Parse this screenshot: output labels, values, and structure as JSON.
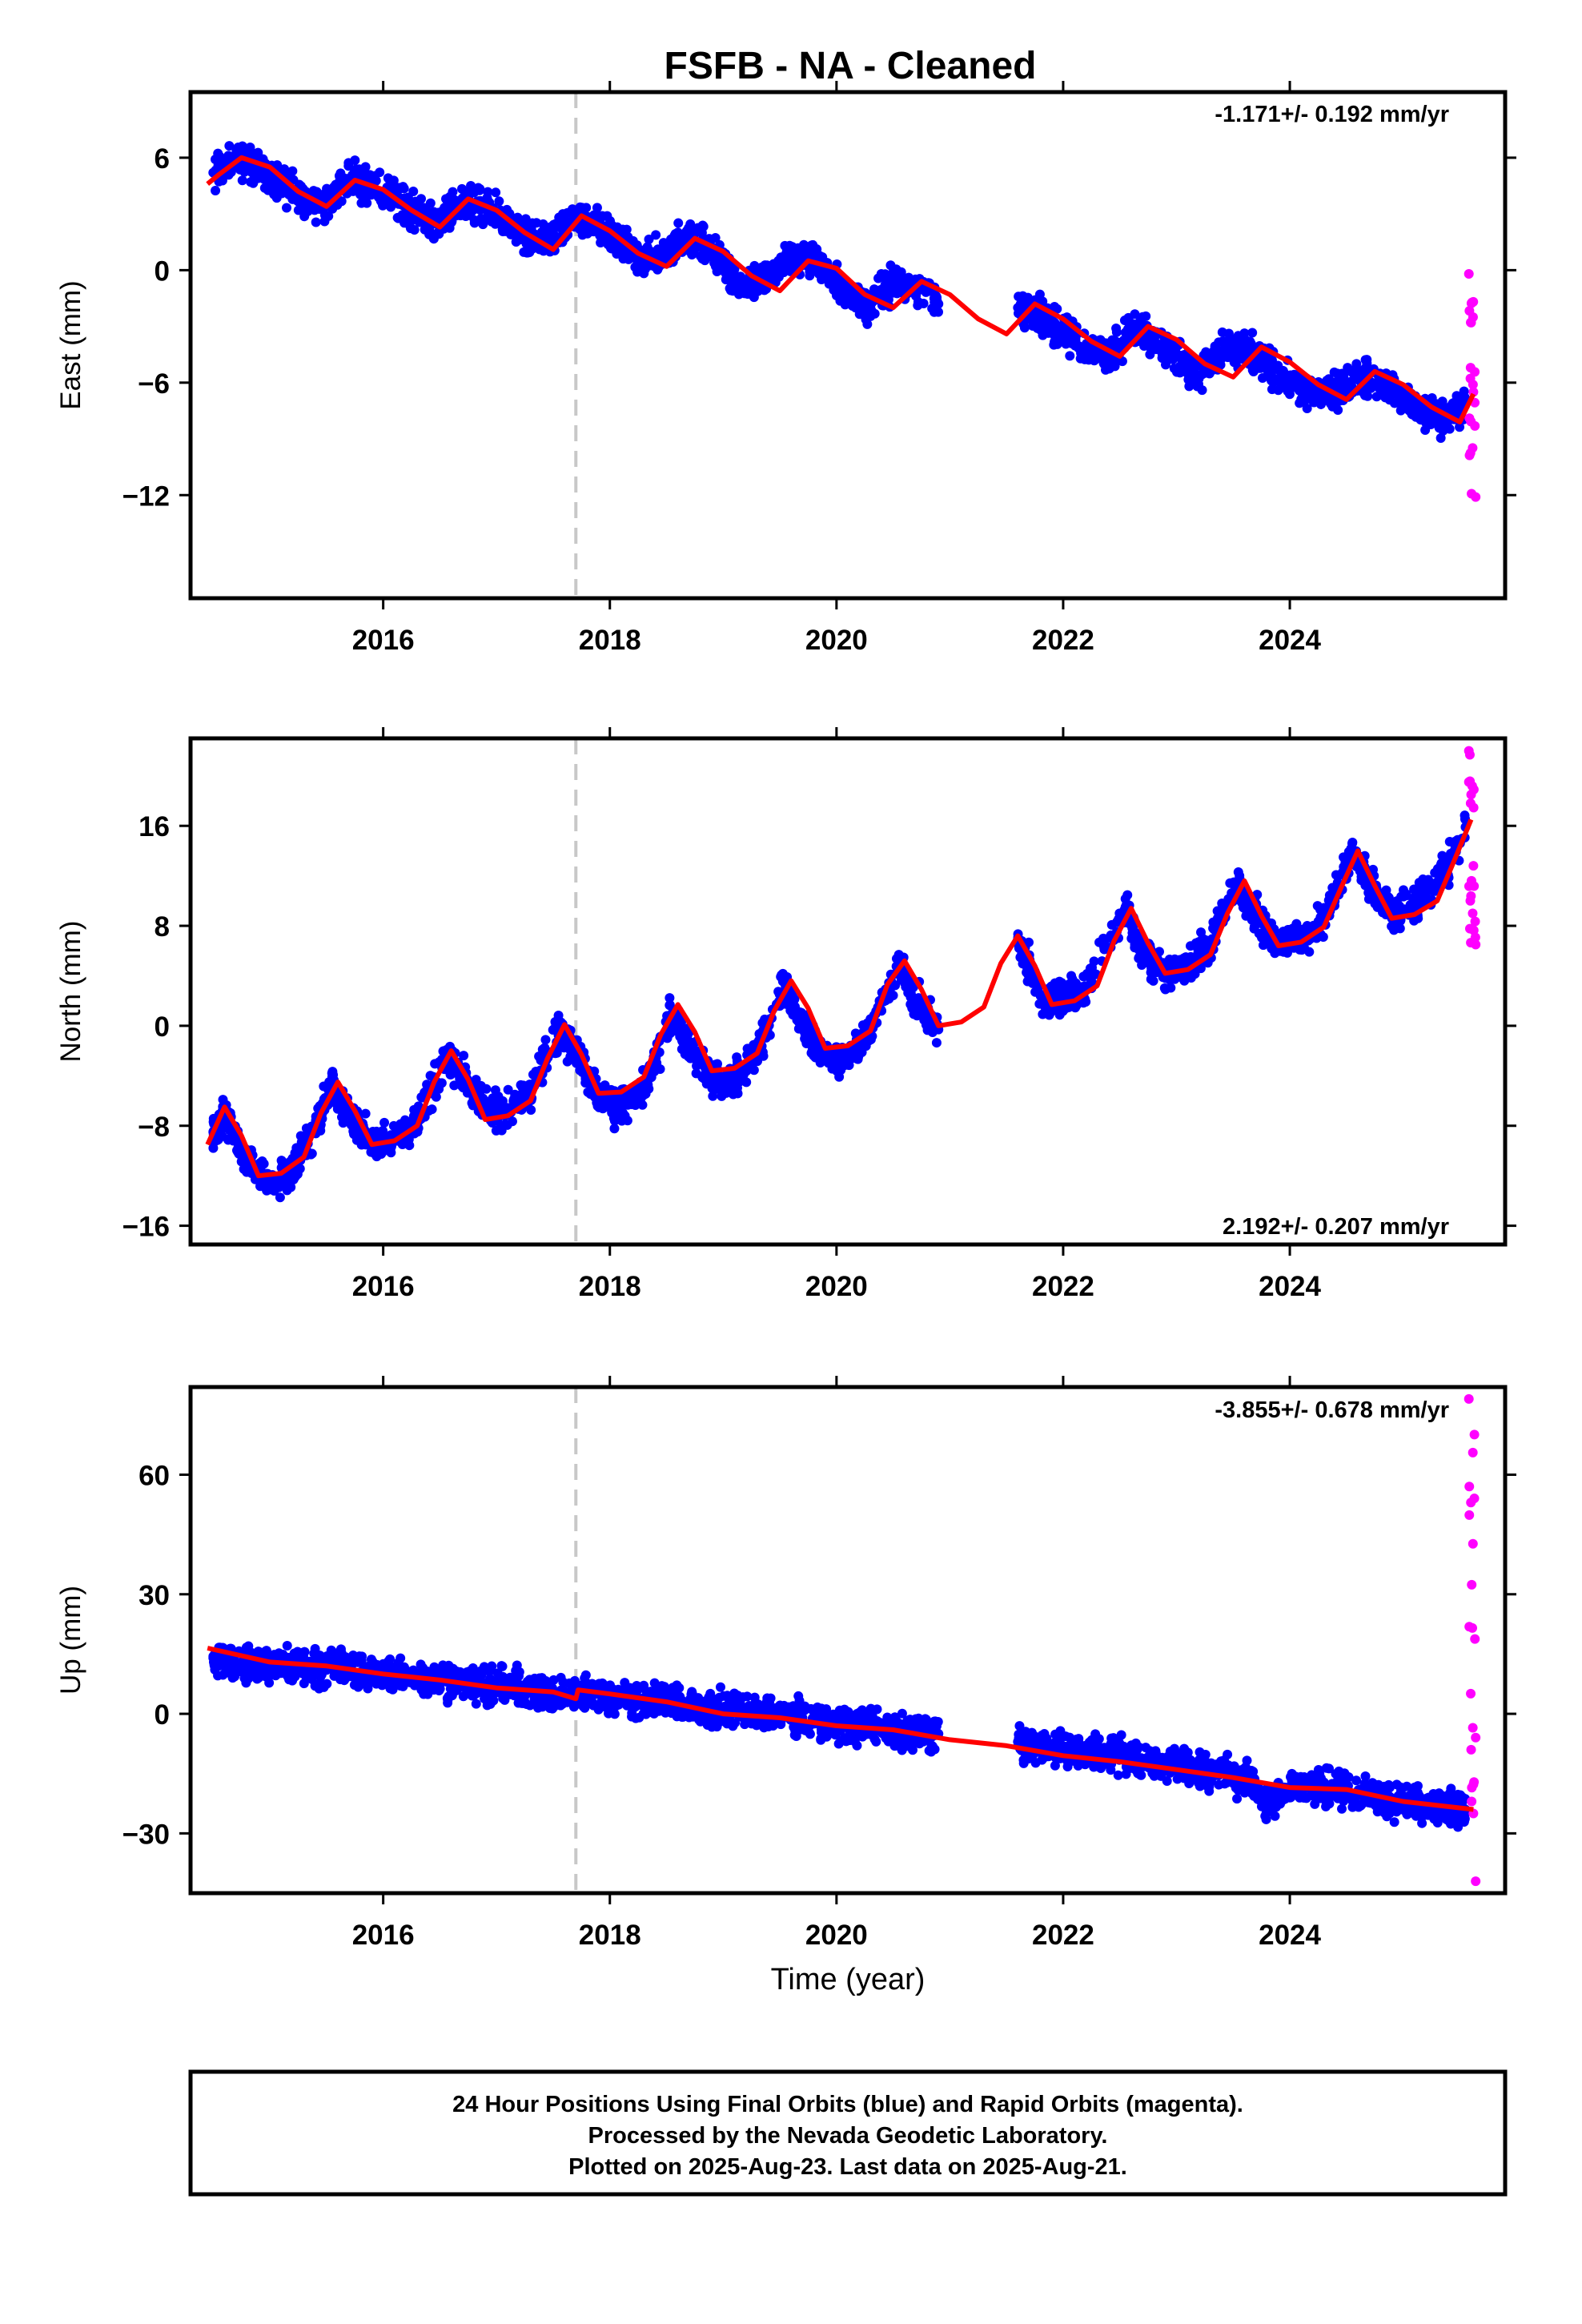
{
  "title": "FSFB  - NA - Cleaned",
  "colors": {
    "final": "#0000ff",
    "rapid": "#ff00ff",
    "model": "#ff0000",
    "marker": "#c8c8c8"
  },
  "chart_data": [
    {
      "type": "scatter",
      "component": "east",
      "ylabel": "East (mm)",
      "rate": "-1.171+/- 0.192 mm/yr",
      "xlim": [
        2014.3,
        2025.9
      ],
      "ylim": [
        -17.5,
        9.5
      ],
      "xticks": [
        2016,
        2018,
        2020,
        2022,
        2024
      ],
      "yticks": [
        6,
        0,
        -6,
        -12
      ],
      "ytick_labels": [
        "6",
        "0",
        "−6",
        "−12"
      ],
      "marker_x": 2017.7,
      "data_gap": [
        2021.0,
        2021.5
      ],
      "series": [
        {
          "name": "Final Orbits",
          "color": "#0000ff",
          "x": [
            2014.5,
            2014.7,
            2014.9,
            2015.1,
            2015.3,
            2015.5,
            2015.7,
            2015.9,
            2016.1,
            2016.3,
            2016.5,
            2016.7,
            2016.9,
            2017.1,
            2017.3,
            2017.5,
            2017.7,
            2017.9,
            2018.1,
            2018.3,
            2018.5,
            2018.7,
            2018.9,
            2019.1,
            2019.3,
            2019.5,
            2019.7,
            2019.9,
            2020.1,
            2020.3,
            2020.5,
            2020.7,
            2020.9,
            2021.6,
            2021.8,
            2022.0,
            2022.2,
            2022.4,
            2022.6,
            2022.8,
            2023.0,
            2023.2,
            2023.4,
            2023.6,
            2023.8,
            2024.0,
            2024.2,
            2024.4,
            2024.6,
            2024.8,
            2025.0,
            2025.2,
            2025.4,
            2025.55
          ],
          "y": [
            5.2,
            5.8,
            5.5,
            4.6,
            3.8,
            3.6,
            4.9,
            4.6,
            3.9,
            3.0,
            2.5,
            3.6,
            3.4,
            2.5,
            1.5,
            1.6,
            2.8,
            2.4,
            1.4,
            0.6,
            0.8,
            1.9,
            1.0,
            -0.5,
            -0.6,
            0.2,
            0.8,
            0.1,
            -1.4,
            -1.9,
            -0.6,
            -0.8,
            -1.8,
            -2.0,
            -2.4,
            -3.4,
            -4.1,
            -4.6,
            -3.1,
            -3.6,
            -4.6,
            -5.6,
            -4.4,
            -4.2,
            -5.1,
            -6.0,
            -6.7,
            -6.5,
            -5.6,
            -6.0,
            -6.8,
            -7.6,
            -7.9,
            -7.0
          ]
        },
        {
          "name": "Rapid Orbits",
          "color": "#ff00ff",
          "x": [
            2025.58,
            2025.6,
            2025.62,
            2025.64
          ],
          "y": [
            -0.2,
            -2.8,
            -6.5,
            -12.1
          ]
        }
      ],
      "model": {
        "x": [
          2014.45,
          2014.55,
          2014.75,
          2015.0,
          2015.25,
          2015.5,
          2015.75,
          2016.0,
          2016.25,
          2016.5,
          2016.75,
          2017.0,
          2017.25,
          2017.5,
          2017.75,
          2018.0,
          2018.25,
          2018.5,
          2018.75,
          2019.0,
          2019.25,
          2019.5,
          2019.75,
          2020.0,
          2020.25,
          2020.5,
          2020.75,
          2021.0,
          2021.25,
          2021.5,
          2021.75,
          2022.0,
          2022.25,
          2022.5,
          2022.75,
          2023.0,
          2023.25,
          2023.5,
          2023.75,
          2024.0,
          2024.25,
          2024.5,
          2024.75,
          2025.0,
          2025.25,
          2025.5,
          2025.62
        ],
        "y": [
          4.6,
          5.1,
          6.0,
          5.5,
          4.2,
          3.4,
          4.8,
          4.3,
          3.2,
          2.3,
          3.8,
          3.2,
          2.0,
          1.1,
          2.9,
          2.1,
          0.9,
          0.2,
          1.7,
          1.0,
          -0.3,
          -1.1,
          0.5,
          0.1,
          -1.3,
          -2.0,
          -0.6,
          -1.3,
          -2.6,
          -3.4,
          -1.8,
          -2.6,
          -3.8,
          -4.6,
          -3.0,
          -3.7,
          -5.0,
          -5.7,
          -4.1,
          -4.9,
          -6.1,
          -6.9,
          -5.4,
          -6.1,
          -7.3,
          -8.1,
          -6.6
        ]
      }
    },
    {
      "type": "scatter",
      "component": "north",
      "ylabel": "North (mm)",
      "rate": "2.192+/- 0.207 mm/yr",
      "xlim": [
        2014.3,
        2025.9
      ],
      "ylim": [
        -17.5,
        23
      ],
      "xticks": [
        2016,
        2018,
        2020,
        2022,
        2024
      ],
      "yticks": [
        16,
        8,
        0,
        -8,
        -16
      ],
      "ytick_labels": [
        "16",
        "8",
        "0",
        "−8",
        "−16"
      ],
      "marker_x": 2017.7,
      "data_gap": [
        2021.0,
        2021.5
      ],
      "series": [
        {
          "name": "Final Orbits",
          "color": "#0000ff",
          "x": [
            2014.5,
            2014.6,
            2014.8,
            2015.0,
            2015.2,
            2015.4,
            2015.55,
            2015.7,
            2015.9,
            2016.1,
            2016.3,
            2016.55,
            2016.7,
            2016.9,
            2017.1,
            2017.3,
            2017.55,
            2017.7,
            2017.9,
            2018.1,
            2018.3,
            2018.55,
            2018.7,
            2018.9,
            2019.1,
            2019.3,
            2019.55,
            2019.7,
            2019.9,
            2020.1,
            2020.3,
            2020.55,
            2020.7,
            2020.9,
            2021.6,
            2021.8,
            2022.0,
            2022.2,
            2022.55,
            2022.7,
            2022.9,
            2023.1,
            2023.3,
            2023.55,
            2023.7,
            2023.9,
            2024.1,
            2024.3,
            2024.55,
            2024.7,
            2024.9,
            2025.1,
            2025.3,
            2025.55
          ],
          "y": [
            -8.5,
            -7.4,
            -10.7,
            -12.5,
            -11.6,
            -8.4,
            -4.7,
            -7.2,
            -9.4,
            -9.2,
            -7.6,
            -2.5,
            -4.0,
            -6.6,
            -6.9,
            -5.1,
            -0.4,
            -2.0,
            -5.9,
            -6.5,
            -5.1,
            1.0,
            -1.6,
            -4.5,
            -4.4,
            -2.2,
            3.2,
            0.1,
            -2.6,
            -2.3,
            -0.6,
            5.0,
            1.9,
            -0.3,
            6.9,
            2.4,
            2.2,
            3.1,
            9.5,
            5.8,
            4.4,
            4.9,
            6.5,
            11.6,
            8.8,
            6.6,
            7.1,
            8.4,
            13.8,
            11.1,
            9.1,
            9.6,
            11.1,
            15.9
          ]
        },
        {
          "name": "Rapid Orbits",
          "color": "#ff00ff",
          "x": [
            2025.58,
            2025.6,
            2025.62,
            2025.64
          ],
          "y": [
            22.0,
            18.5,
            12.8,
            6.5
          ]
        }
      ],
      "model": {
        "x": [
          2014.45,
          2014.6,
          2014.75,
          2014.9,
          2015.1,
          2015.3,
          2015.45,
          2015.6,
          2015.75,
          2015.9,
          2016.1,
          2016.3,
          2016.45,
          2016.6,
          2016.75,
          2016.9,
          2017.1,
          2017.3,
          2017.45,
          2017.6,
          2017.75,
          2017.9,
          2018.1,
          2018.3,
          2018.45,
          2018.6,
          2018.75,
          2018.9,
          2019.1,
          2019.3,
          2019.45,
          2019.6,
          2019.75,
          2019.9,
          2020.1,
          2020.3,
          2020.45,
          2020.6,
          2020.75,
          2020.9,
          2021.1,
          2021.3,
          2021.45,
          2021.6,
          2021.75,
          2021.9,
          2022.1,
          2022.3,
          2022.45,
          2022.6,
          2022.75,
          2022.9,
          2023.1,
          2023.3,
          2023.45,
          2023.6,
          2023.75,
          2023.9,
          2024.1,
          2024.3,
          2024.45,
          2024.6,
          2024.75,
          2024.9,
          2025.1,
          2025.3,
          2025.45,
          2025.6
        ],
        "y": [
          -9.5,
          -6.5,
          -8.8,
          -12.0,
          -11.8,
          -10.5,
          -7.0,
          -4.5,
          -6.8,
          -9.5,
          -9.2,
          -8.0,
          -4.5,
          -2.0,
          -4.3,
          -7.5,
          -7.2,
          -6.0,
          -2.6,
          0.1,
          -2.3,
          -5.4,
          -5.3,
          -4.1,
          -0.7,
          1.7,
          -0.5,
          -3.6,
          -3.4,
          -2.2,
          1.2,
          3.6,
          1.4,
          -1.8,
          -1.6,
          -0.4,
          3.3,
          5.2,
          2.9,
          0.0,
          0.3,
          1.5,
          5.0,
          7.2,
          4.8,
          1.7,
          2.0,
          3.2,
          6.8,
          9.4,
          6.6,
          4.2,
          4.5,
          5.7,
          9.0,
          11.6,
          8.8,
          6.4,
          6.7,
          7.9,
          11.0,
          14.0,
          11.2,
          8.6,
          8.9,
          10.0,
          13.2,
          16.5
        ]
      }
    },
    {
      "type": "scatter",
      "component": "up",
      "ylabel": "Up (mm)",
      "rate": "-3.855+/- 0.678 mm/yr",
      "xlabel": "Time (year)",
      "xlim": [
        2014.3,
        2025.9
      ],
      "ylim": [
        -45,
        82
      ],
      "xticks": [
        2016,
        2018,
        2020,
        2022,
        2024
      ],
      "yticks": [
        60,
        30,
        0,
        -30
      ],
      "ytick_labels": [
        "60",
        "30",
        "0",
        "−30"
      ],
      "marker_x": 2017.7,
      "data_gap": [
        2021.0,
        2021.5
      ],
      "series": [
        {
          "name": "Final Orbits",
          "color": "#0000ff",
          "x": [
            2014.5,
            2014.7,
            2014.9,
            2015.1,
            2015.3,
            2015.5,
            2015.7,
            2015.9,
            2016.1,
            2016.3,
            2016.5,
            2016.7,
            2016.9,
            2017.1,
            2017.3,
            2017.5,
            2017.7,
            2017.9,
            2018.1,
            2018.3,
            2018.5,
            2018.7,
            2018.9,
            2019.1,
            2019.3,
            2019.5,
            2019.7,
            2019.9,
            2020.1,
            2020.3,
            2020.5,
            2020.7,
            2020.9,
            2021.6,
            2021.8,
            2022.0,
            2022.2,
            2022.4,
            2022.6,
            2022.8,
            2023.0,
            2023.2,
            2023.4,
            2023.6,
            2023.8,
            2024.0,
            2024.2,
            2024.4,
            2024.6,
            2024.8,
            2025.0,
            2025.2,
            2025.4,
            2025.55
          ],
          "y": [
            14,
            13,
            12,
            12,
            12,
            11,
            12,
            10,
            10,
            9,
            9,
            8,
            7,
            7,
            6,
            5,
            5,
            5,
            4,
            4,
            3,
            2,
            1,
            1,
            0,
            0,
            -1,
            -2,
            -3,
            -3,
            -4,
            -5,
            -5,
            -7,
            -8,
            -9,
            -10,
            -10,
            -11,
            -12,
            -13,
            -14,
            -15,
            -16,
            -22,
            -19,
            -18,
            -19,
            -20,
            -21,
            -22,
            -23,
            -23,
            -24
          ]
        },
        {
          "name": "Rapid Orbits",
          "color": "#ff00ff",
          "x": [
            2025.58,
            2025.6,
            2025.62,
            2025.64
          ],
          "y": [
            79,
            -9,
            -25,
            -42
          ]
        }
      ],
      "model": {
        "x": [
          2014.45,
          2015.0,
          2015.5,
          2016.0,
          2016.5,
          2017.0,
          2017.5,
          2017.7,
          2017.72,
          2018.0,
          2018.5,
          2019.0,
          2019.5,
          2020.0,
          2020.5,
          2021.0,
          2021.5,
          2022.0,
          2022.5,
          2023.0,
          2023.5,
          2024.0,
          2024.5,
          2025.0,
          2025.62
        ],
        "y": [
          16.5,
          13,
          12,
          10,
          8.5,
          6.5,
          5.5,
          3.8,
          6,
          5,
          3,
          0,
          -1,
          -3,
          -4,
          -6.5,
          -8,
          -10.5,
          -12,
          -14,
          -16,
          -18.5,
          -19,
          -22,
          -24
        ]
      }
    }
  ],
  "caption": {
    "line1": "24 Hour Positions Using Final Orbits (blue) and Rapid Orbits (magenta).",
    "line2": "Processed by the Nevada Geodetic Laboratory.",
    "line3": "Plotted on 2025-Aug-23. Last data on 2025-Aug-21."
  }
}
